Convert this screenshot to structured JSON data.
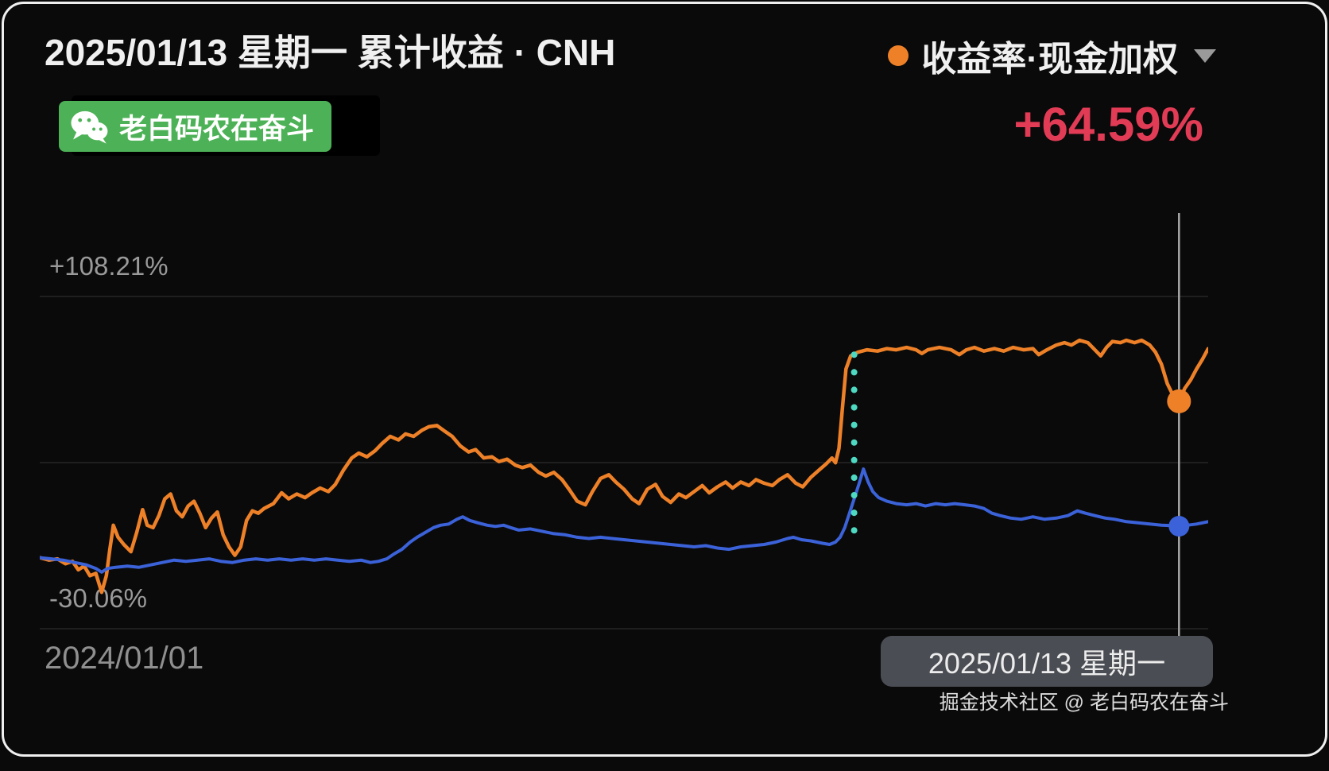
{
  "header": {
    "title": "2025/01/13 星期一 累计收益 · CNH",
    "legend_label": "收益率·现金加权",
    "current_value": "+64.59%",
    "badge_text": "老白码农在奋斗"
  },
  "tooltip": {
    "date_label": "2025/01/13 星期一"
  },
  "watermark": "掘金技术社区 @ 老白码农在奋斗",
  "icons": {
    "legend_dot": "orange-circle",
    "dropdown": "chevron-down-icon",
    "badge": "wechat-icon"
  },
  "colors": {
    "background": "#0a0a0a",
    "orange": "#ee8128",
    "blue": "#3b62d9",
    "teal": "#4ed9c2",
    "red": "#e23b55",
    "green_badge": "#4db257",
    "crosshair": "#a8a8a8",
    "grid": "#262626",
    "axis_text": "#9a9a9a",
    "tooltip_bg": "#4a4d53"
  },
  "chart_data": {
    "type": "line",
    "title": "累计收益 · CNH",
    "selected_date": "2025/01/13 星期一",
    "current_return_pct": 64.59,
    "y_axis": {
      "max": 108.21,
      "min": -30.06,
      "max_label": "+108.21%",
      "min_label": "-30.06%"
    },
    "x_axis": {
      "start_label": "2024/01/01",
      "selected_label": "2025/01/13 星期一"
    },
    "legend": [
      {
        "name": "收益率·现金加权",
        "color": "#ee8128",
        "position": "top-right"
      }
    ],
    "grid": "horizontal-faint",
    "series": [
      {
        "id": "return-cash-weighted",
        "name": "收益率·现金加权",
        "color": "#ee8128",
        "points": [
          [
            0.0,
            -0.5
          ],
          [
            0.008,
            -1.5
          ],
          [
            0.015,
            -1.0
          ],
          [
            0.022,
            -3.0
          ],
          [
            0.028,
            -2.0
          ],
          [
            0.033,
            -5.5
          ],
          [
            0.038,
            -4.0
          ],
          [
            0.043,
            -8.0
          ],
          [
            0.048,
            -7.0
          ],
          [
            0.053,
            -14.9
          ],
          [
            0.057,
            -8.0
          ],
          [
            0.06,
            3.0
          ],
          [
            0.063,
            13.0
          ],
          [
            0.067,
            8.0
          ],
          [
            0.072,
            5.0
          ],
          [
            0.078,
            2.0
          ],
          [
            0.083,
            10.0
          ],
          [
            0.088,
            19.5
          ],
          [
            0.092,
            13.0
          ],
          [
            0.097,
            12.0
          ],
          [
            0.102,
            17.0
          ],
          [
            0.107,
            24.0
          ],
          [
            0.112,
            26.0
          ],
          [
            0.117,
            19.0
          ],
          [
            0.122,
            16.5
          ],
          [
            0.127,
            21.0
          ],
          [
            0.132,
            23.0
          ],
          [
            0.137,
            18.0
          ],
          [
            0.142,
            12.0
          ],
          [
            0.147,
            16.0
          ],
          [
            0.152,
            18.5
          ],
          [
            0.157,
            9.0
          ],
          [
            0.162,
            4.0
          ],
          [
            0.167,
            0.5
          ],
          [
            0.172,
            4.0
          ],
          [
            0.177,
            15.0
          ],
          [
            0.182,
            19.0
          ],
          [
            0.187,
            18.0
          ],
          [
            0.192,
            20.0
          ],
          [
            0.2,
            22.0
          ],
          [
            0.207,
            26.5
          ],
          [
            0.213,
            24.0
          ],
          [
            0.22,
            26.0
          ],
          [
            0.227,
            24.5
          ],
          [
            0.233,
            26.5
          ],
          [
            0.24,
            28.5
          ],
          [
            0.247,
            27.0
          ],
          [
            0.253,
            30.0
          ],
          [
            0.26,
            36.0
          ],
          [
            0.267,
            41.0
          ],
          [
            0.273,
            43.0
          ],
          [
            0.28,
            41.5
          ],
          [
            0.287,
            44.0
          ],
          [
            0.293,
            47.0
          ],
          [
            0.3,
            50.0
          ],
          [
            0.307,
            48.5
          ],
          [
            0.313,
            51.0
          ],
          [
            0.32,
            50.0
          ],
          [
            0.327,
            52.5
          ],
          [
            0.333,
            54.0
          ],
          [
            0.34,
            54.5
          ],
          [
            0.347,
            52.0
          ],
          [
            0.353,
            50.0
          ],
          [
            0.36,
            46.0
          ],
          [
            0.367,
            43.5
          ],
          [
            0.373,
            44.5
          ],
          [
            0.38,
            41.0
          ],
          [
            0.387,
            41.5
          ],
          [
            0.393,
            39.5
          ],
          [
            0.4,
            40.5
          ],
          [
            0.407,
            38.0
          ],
          [
            0.413,
            37.0
          ],
          [
            0.42,
            38.0
          ],
          [
            0.427,
            35.0
          ],
          [
            0.433,
            33.5
          ],
          [
            0.44,
            35.0
          ],
          [
            0.447,
            32.0
          ],
          [
            0.453,
            28.0
          ],
          [
            0.46,
            23.0
          ],
          [
            0.467,
            21.5
          ],
          [
            0.473,
            27.0
          ],
          [
            0.48,
            32.5
          ],
          [
            0.487,
            34.0
          ],
          [
            0.493,
            31.0
          ],
          [
            0.5,
            28.0
          ],
          [
            0.507,
            24.0
          ],
          [
            0.513,
            22.0
          ],
          [
            0.52,
            28.0
          ],
          [
            0.527,
            30.0
          ],
          [
            0.533,
            25.0
          ],
          [
            0.54,
            22.5
          ],
          [
            0.547,
            26.0
          ],
          [
            0.553,
            24.5
          ],
          [
            0.56,
            27.0
          ],
          [
            0.567,
            29.5
          ],
          [
            0.573,
            26.5
          ],
          [
            0.58,
            29.0
          ],
          [
            0.587,
            31.0
          ],
          [
            0.593,
            28.5
          ],
          [
            0.6,
            31.0
          ],
          [
            0.607,
            29.5
          ],
          [
            0.613,
            32.0
          ],
          [
            0.62,
            30.5
          ],
          [
            0.627,
            29.5
          ],
          [
            0.633,
            32.0
          ],
          [
            0.64,
            34.0
          ],
          [
            0.647,
            30.5
          ],
          [
            0.653,
            29.0
          ],
          [
            0.66,
            33.0
          ],
          [
            0.667,
            36.0
          ],
          [
            0.673,
            38.5
          ],
          [
            0.678,
            41.0
          ],
          [
            0.681,
            39.0
          ],
          [
            0.684,
            45.0
          ],
          [
            0.687,
            62.0
          ],
          [
            0.69,
            78.0
          ],
          [
            0.694,
            83.5
          ],
          [
            0.7,
            85.0
          ],
          [
            0.708,
            86.0
          ],
          [
            0.717,
            85.5
          ],
          [
            0.725,
            86.5
          ],
          [
            0.733,
            86.0
          ],
          [
            0.742,
            87.0
          ],
          [
            0.75,
            86.0
          ],
          [
            0.755,
            84.5
          ],
          [
            0.76,
            86.0
          ],
          [
            0.77,
            87.0
          ],
          [
            0.78,
            86.0
          ],
          [
            0.787,
            84.0
          ],
          [
            0.793,
            86.0
          ],
          [
            0.8,
            87.0
          ],
          [
            0.808,
            85.5
          ],
          [
            0.817,
            86.5
          ],
          [
            0.825,
            85.5
          ],
          [
            0.833,
            87.0
          ],
          [
            0.842,
            86.0
          ],
          [
            0.85,
            86.5
          ],
          [
            0.855,
            84.0
          ],
          [
            0.862,
            86.0
          ],
          [
            0.87,
            88.0
          ],
          [
            0.877,
            89.0
          ],
          [
            0.883,
            88.0
          ],
          [
            0.89,
            90.0
          ],
          [
            0.897,
            89.0
          ],
          [
            0.903,
            86.0
          ],
          [
            0.908,
            83.5
          ],
          [
            0.913,
            87.0
          ],
          [
            0.918,
            89.5
          ],
          [
            0.925,
            89.0
          ],
          [
            0.93,
            90.0
          ],
          [
            0.937,
            89.0
          ],
          [
            0.943,
            90.0
          ],
          [
            0.95,
            88.0
          ],
          [
            0.955,
            85.0
          ],
          [
            0.96,
            80.0
          ],
          [
            0.965,
            72.0
          ],
          [
            0.97,
            67.0
          ],
          [
            0.975,
            64.59
          ],
          [
            0.98,
            70.0
          ],
          [
            0.985,
            73.5
          ],
          [
            0.99,
            78.0
          ],
          [
            0.995,
            82.0
          ],
          [
            1.0,
            86.5
          ]
        ]
      },
      {
        "id": "benchmark-blue",
        "name": "",
        "color": "#3b62d9",
        "points": [
          [
            0.0,
            -0.5
          ],
          [
            0.01,
            -1.0
          ],
          [
            0.02,
            -1.5
          ],
          [
            0.03,
            -2.5
          ],
          [
            0.04,
            -3.5
          ],
          [
            0.048,
            -5.0
          ],
          [
            0.053,
            -6.5
          ],
          [
            0.058,
            -5.0
          ],
          [
            0.065,
            -4.5
          ],
          [
            0.075,
            -4.0
          ],
          [
            0.085,
            -4.5
          ],
          [
            0.095,
            -3.5
          ],
          [
            0.105,
            -2.5
          ],
          [
            0.115,
            -1.5
          ],
          [
            0.125,
            -2.0
          ],
          [
            0.135,
            -1.5
          ],
          [
            0.145,
            -1.0
          ],
          [
            0.155,
            -2.0
          ],
          [
            0.165,
            -2.5
          ],
          [
            0.175,
            -1.5
          ],
          [
            0.185,
            -1.0
          ],
          [
            0.195,
            -1.5
          ],
          [
            0.205,
            -1.0
          ],
          [
            0.215,
            -1.5
          ],
          [
            0.225,
            -1.0
          ],
          [
            0.235,
            -1.5
          ],
          [
            0.245,
            -1.0
          ],
          [
            0.255,
            -1.5
          ],
          [
            0.265,
            -2.0
          ],
          [
            0.275,
            -1.5
          ],
          [
            0.283,
            -2.5
          ],
          [
            0.29,
            -2.0
          ],
          [
            0.297,
            -1.0
          ],
          [
            0.303,
            1.0
          ],
          [
            0.31,
            3.0
          ],
          [
            0.317,
            6.0
          ],
          [
            0.323,
            8.0
          ],
          [
            0.33,
            10.0
          ],
          [
            0.337,
            12.0
          ],
          [
            0.343,
            13.0
          ],
          [
            0.35,
            13.5
          ],
          [
            0.357,
            15.5
          ],
          [
            0.362,
            16.5
          ],
          [
            0.368,
            15.0
          ],
          [
            0.375,
            14.0
          ],
          [
            0.383,
            13.0
          ],
          [
            0.39,
            12.5
          ],
          [
            0.397,
            13.0
          ],
          [
            0.403,
            12.0
          ],
          [
            0.41,
            11.0
          ],
          [
            0.42,
            11.5
          ],
          [
            0.43,
            10.5
          ],
          [
            0.44,
            9.5
          ],
          [
            0.45,
            9.0
          ],
          [
            0.46,
            8.0
          ],
          [
            0.47,
            7.5
          ],
          [
            0.48,
            8.0
          ],
          [
            0.49,
            7.5
          ],
          [
            0.5,
            7.0
          ],
          [
            0.51,
            6.5
          ],
          [
            0.52,
            6.0
          ],
          [
            0.53,
            5.5
          ],
          [
            0.54,
            5.0
          ],
          [
            0.55,
            4.5
          ],
          [
            0.56,
            4.0
          ],
          [
            0.57,
            4.5
          ],
          [
            0.58,
            3.5
          ],
          [
            0.59,
            3.0
          ],
          [
            0.6,
            4.0
          ],
          [
            0.61,
            4.5
          ],
          [
            0.62,
            5.0
          ],
          [
            0.63,
            6.0
          ],
          [
            0.64,
            7.5
          ],
          [
            0.645,
            8.0
          ],
          [
            0.652,
            7.0
          ],
          [
            0.66,
            6.5
          ],
          [
            0.67,
            5.5
          ],
          [
            0.676,
            5.0
          ],
          [
            0.681,
            6.0
          ],
          [
            0.685,
            8.0
          ],
          [
            0.689,
            12.0
          ],
          [
            0.693,
            18.0
          ],
          [
            0.697,
            24.0
          ],
          [
            0.701,
            30.0
          ],
          [
            0.705,
            36.4
          ],
          [
            0.709,
            31.0
          ],
          [
            0.713,
            27.0
          ],
          [
            0.718,
            24.5
          ],
          [
            0.725,
            23.0
          ],
          [
            0.733,
            22.0
          ],
          [
            0.742,
            21.5
          ],
          [
            0.75,
            22.0
          ],
          [
            0.758,
            21.0
          ],
          [
            0.767,
            22.0
          ],
          [
            0.775,
            21.5
          ],
          [
            0.783,
            22.0
          ],
          [
            0.792,
            21.5
          ],
          [
            0.8,
            21.0
          ],
          [
            0.808,
            20.0
          ],
          [
            0.815,
            18.0
          ],
          [
            0.822,
            17.0
          ],
          [
            0.831,
            16.0
          ],
          [
            0.84,
            15.5
          ],
          [
            0.85,
            16.5
          ],
          [
            0.86,
            15.5
          ],
          [
            0.87,
            16.0
          ],
          [
            0.88,
            17.0
          ],
          [
            0.888,
            19.0
          ],
          [
            0.895,
            18.0
          ],
          [
            0.903,
            17.0
          ],
          [
            0.912,
            16.0
          ],
          [
            0.92,
            15.5
          ],
          [
            0.93,
            14.5
          ],
          [
            0.94,
            14.0
          ],
          [
            0.95,
            13.5
          ],
          [
            0.96,
            13.0
          ],
          [
            0.97,
            12.8
          ],
          [
            0.975,
            12.6
          ],
          [
            0.982,
            13.0
          ],
          [
            0.99,
            13.5
          ],
          [
            1.0,
            14.5
          ]
        ]
      }
    ],
    "markers": {
      "crosshair_x": 0.975,
      "event_line": {
        "x": 0.697,
        "v_top": 84.0,
        "v_bottom": 7.0
      },
      "orange_dot": {
        "x": 0.975,
        "v": 64.59
      },
      "blue_dot": {
        "x": 0.975,
        "v": 12.6
      }
    }
  }
}
